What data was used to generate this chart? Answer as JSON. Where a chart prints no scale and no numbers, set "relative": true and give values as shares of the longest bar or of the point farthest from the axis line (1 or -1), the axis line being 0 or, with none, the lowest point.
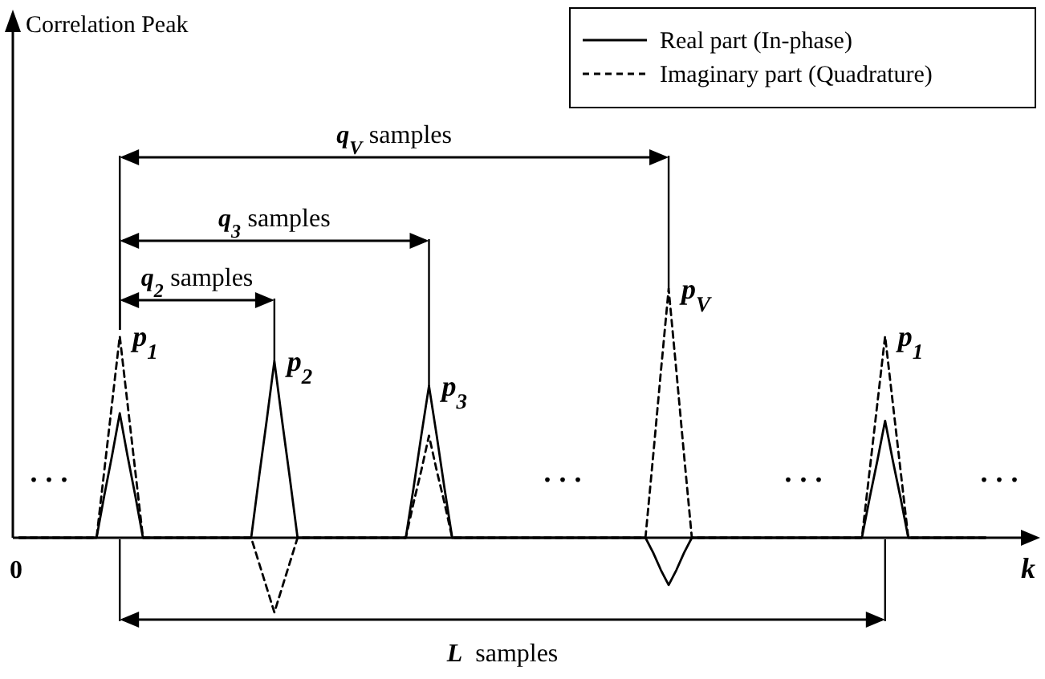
{
  "chart_data": {
    "type": "line",
    "relative": true,
    "xlabel": "k",
    "legend": "top right",
    "categories": [
      null,
      null,
      null,
      null,
      null,
      null,
      null,
      null,
      null,
      null,
      null,
      null,
      null,
      null,
      null,
      null,
      null,
      null,
      null,
      null,
      null,
      null,
      null,
      null,
      null,
      null,
      null,
      null,
      null,
      null,
      null,
      null,
      null,
      null,
      null,
      null,
      null,
      null,
      null,
      null,
      null,
      null,
      null,
      null,
      null,
      null,
      null,
      null,
      null,
      null,
      null,
      null,
      null,
      null,
      null,
      null,
      null,
      null,
      null,
      null,
      null,
      null,
      null,
      null,
      null,
      null,
      null,
      null,
      null,
      null,
      null,
      null,
      null,
      null,
      null,
      null,
      null,
      null,
      null,
      null,
      null,
      null,
      null,
      null,
      null,
      null,
      null,
      null,
      null,
      null,
      null,
      null,
      null,
      null,
      null,
      null,
      null,
      null,
      null,
      null,
      null,
      null,
      null,
      null,
      null,
      null,
      null,
      null,
      null,
      null,
      null,
      null,
      null,
      null,
      null,
      null,
      null,
      null,
      null,
      null,
      null,
      null,
      null,
      null,
      null,
      null
    ],
    "series": [
      {
        "name": "Real part (In-phase)",
        "color": "#000000",
        "line_style": "solid",
        "values": [
          0,
          0,
          0,
          0,
          0,
          0,
          0,
          0,
          0,
          0,
          0,
          0.17,
          0.33,
          0.5,
          0.33,
          0.17,
          0,
          0,
          0,
          0,
          0,
          0,
          0,
          0,
          0,
          0,
          0,
          0,
          0,
          0,
          0,
          0.24,
          0.47,
          0.71,
          0.47,
          0.24,
          0,
          0,
          0,
          0,
          0,
          0,
          0,
          0,
          0,
          0,
          0,
          0,
          0,
          0,
          0,
          0.2,
          0.41,
          0.61,
          0.41,
          0.2,
          0,
          0,
          0,
          0,
          0,
          0,
          0,
          0,
          0,
          0,
          0,
          0,
          0,
          0,
          0,
          0,
          0,
          0,
          0,
          0,
          0,
          0,
          0,
          0,
          0,
          0,
          -0.06,
          -0.13,
          -0.19,
          -0.13,
          -0.06,
          0,
          0,
          0,
          0,
          0,
          0,
          0,
          0,
          0,
          0,
          0,
          0,
          0,
          0,
          0,
          0,
          0,
          0,
          0,
          0,
          0,
          0,
          0,
          0.16,
          0.31,
          0.47,
          0.31,
          0.16,
          0,
          0,
          0,
          0,
          0,
          0,
          0,
          0,
          0,
          0,
          0
        ]
      },
      {
        "name": "Imaginary part (Quadrature)",
        "color": "#000000",
        "line_style": "dashed",
        "values": [
          0,
          0,
          0,
          0,
          0,
          0,
          0,
          0,
          0,
          0,
          0,
          0.27,
          0.54,
          0.81,
          0.54,
          0.27,
          0,
          0,
          0,
          0,
          0,
          0,
          0,
          0,
          0,
          0,
          0,
          0,
          0,
          0,
          0,
          -0.1,
          -0.2,
          -0.3,
          -0.2,
          -0.1,
          0,
          0,
          0,
          0,
          0,
          0,
          0,
          0,
          0,
          0,
          0,
          0,
          0,
          0,
          0,
          0.14,
          0.27,
          0.41,
          0.27,
          0.14,
          0,
          0,
          0,
          0,
          0,
          0,
          0,
          0,
          0,
          0,
          0,
          0,
          0,
          0,
          0,
          0,
          0,
          0,
          0,
          0,
          0,
          0,
          0,
          0,
          0,
          0,
          0.33,
          0.67,
          1,
          0.67,
          0.33,
          0,
          0,
          0,
          0,
          0,
          0,
          0,
          0,
          0,
          0,
          0,
          0,
          0,
          0,
          0,
          0,
          0,
          0,
          0,
          0,
          0,
          0,
          0,
          0.27,
          0.54,
          0.81,
          0.54,
          0.27,
          0,
          0,
          0,
          0,
          0,
          0,
          0,
          0,
          0,
          0,
          0
        ]
      }
    ],
    "annotations": [
      "p$_{1}$",
      "p$_{2}$",
      "p$_{3}$",
      "p$_{V}$",
      "p$_{1}$",
      "q$_{2}$ samples",
      "q$_{3}$ samples",
      "q$_{V}$ samples",
      "L samples",
      "0",
      "...",
      "...",
      "...",
      "...",
      "Correlation Peak"
    ]
  }
}
